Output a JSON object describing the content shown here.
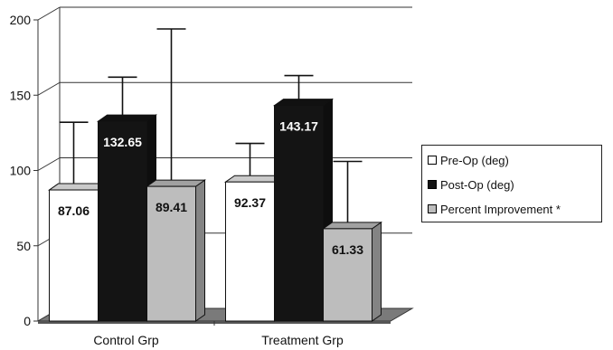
{
  "chart_data": {
    "type": "bar",
    "categories": [
      "Control Grp",
      "Treatment Grp"
    ],
    "series": [
      {
        "name": "Pre-Op (deg)",
        "values": [
          87.06,
          92.37
        ],
        "error_upper": [
          132,
          118
        ],
        "color": "#ffffff"
      },
      {
        "name": "Post-Op (deg)",
        "values": [
          132.65,
          143.17
        ],
        "error_upper": [
          162,
          163
        ],
        "color": "#141414"
      },
      {
        "name": "Percent Improvement *",
        "values": [
          89.41,
          61.33
        ],
        "error_upper": [
          194,
          106
        ],
        "color": "#bdbdbd"
      }
    ],
    "value_labels": [
      [
        "87.06",
        "92.37"
      ],
      [
        "132.65",
        "143.17"
      ],
      [
        "89.41",
        "61.33"
      ]
    ],
    "ylim": [
      0,
      200
    ],
    "yticks": [
      "0",
      "50",
      "100",
      "150",
      "200"
    ],
    "grid": "horizontal",
    "legend_position": "right",
    "style": "3d"
  }
}
